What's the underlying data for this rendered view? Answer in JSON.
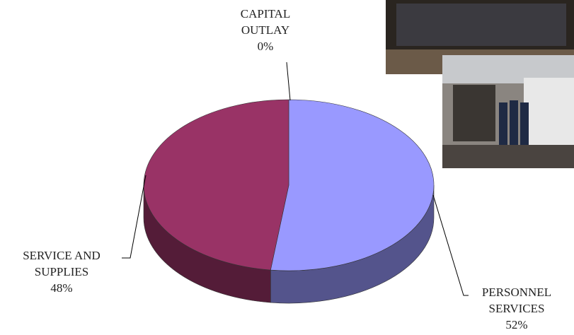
{
  "chart_data": {
    "type": "pie",
    "style": "3d",
    "categories": [
      "CAPITAL OUTLAY",
      "PERSONNEL SERVICES",
      "SERVICE AND SUPPLIES"
    ],
    "values": [
      0,
      52,
      48
    ],
    "value_labels": [
      "0%",
      "52%",
      "48%"
    ],
    "colors": [
      "#ffffcc",
      "#9999ff",
      "#993366"
    ]
  }
}
